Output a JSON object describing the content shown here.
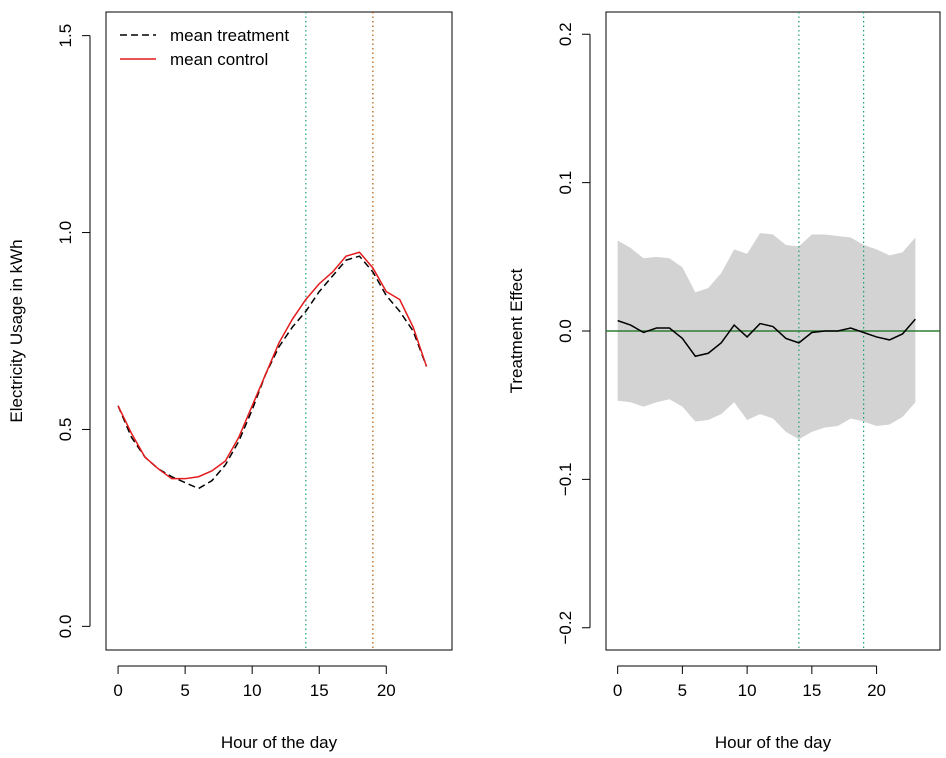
{
  "chart_data": [
    {
      "type": "line",
      "xlabel": "Hour of the day",
      "ylabel": "Electricity Usage in kWh",
      "xlim": [
        -0.9,
        24.9
      ],
      "ylim": [
        -0.06,
        1.56
      ],
      "xticks": [
        "0",
        "5",
        "10",
        "15",
        "20"
      ],
      "yticks": [
        "0.0",
        "0.5",
        "1.0",
        "1.5"
      ],
      "legend_position": "top-left",
      "legend": [
        "mean treatment",
        "mean control"
      ],
      "x": [
        0,
        1,
        2,
        3,
        4,
        5,
        6,
        7,
        8,
        9,
        10,
        11,
        12,
        13,
        14,
        15,
        16,
        17,
        18,
        19,
        20,
        21,
        22,
        23
      ],
      "series": [
        {
          "name": "mean treatment",
          "style": "dashed",
          "color": "#000000",
          "values": [
            0.56,
            0.48,
            0.43,
            0.4,
            0.38,
            0.365,
            0.35,
            0.37,
            0.41,
            0.47,
            0.55,
            0.64,
            0.71,
            0.76,
            0.8,
            0.85,
            0.89,
            0.93,
            0.94,
            0.9,
            0.84,
            0.8,
            0.75,
            0.66
          ]
        },
        {
          "name": "mean control",
          "style": "solid",
          "color": "#e31a1c",
          "values": [
            0.56,
            0.49,
            0.43,
            0.4,
            0.375,
            0.375,
            0.38,
            0.395,
            0.42,
            0.48,
            0.56,
            0.64,
            0.72,
            0.78,
            0.83,
            0.87,
            0.9,
            0.94,
            0.95,
            0.91,
            0.85,
            0.83,
            0.76,
            0.66
          ]
        }
      ],
      "vlines": [
        {
          "x": 14,
          "color": "#1b9e77",
          "style": "dotted"
        },
        {
          "x": 19,
          "color": "#b35806",
          "style": "dotted"
        }
      ]
    },
    {
      "type": "line",
      "xlabel": "Hour of the day",
      "ylabel": "Treatment Effect",
      "xlim": [
        -0.9,
        24.9
      ],
      "ylim": [
        -0.215,
        0.215
      ],
      "xticks": [
        "0",
        "5",
        "10",
        "15",
        "20"
      ],
      "yticks": [
        "−0.2",
        "−0.1",
        "0.0",
        "0.1",
        "0.2"
      ],
      "x": [
        0,
        1,
        2,
        3,
        4,
        5,
        6,
        7,
        8,
        9,
        10,
        11,
        12,
        13,
        14,
        15,
        16,
        17,
        18,
        19,
        20,
        21,
        22,
        23
      ],
      "series": [
        {
          "style": "solid",
          "color": "#000000",
          "values": [
            0.007,
            0.004,
            -0.001,
            0.002,
            0.002,
            -0.005,
            -0.017,
            -0.015,
            -0.008,
            0.004,
            -0.004,
            0.005,
            0.003,
            -0.005,
            -0.008,
            -0.001,
            0.0,
            0.0,
            0.002,
            -0.001,
            -0.004,
            -0.006,
            -0.002,
            0.008
          ]
        }
      ],
      "band": {
        "color": "#d3d3d3",
        "upper": [
          0.061,
          0.056,
          0.049,
          0.05,
          0.049,
          0.043,
          0.026,
          0.029,
          0.039,
          0.055,
          0.052,
          0.066,
          0.065,
          0.058,
          0.057,
          0.065,
          0.065,
          0.064,
          0.063,
          0.058,
          0.055,
          0.051,
          0.053,
          0.063
        ],
        "lower": [
          -0.047,
          -0.048,
          -0.051,
          -0.048,
          -0.046,
          -0.051,
          -0.061,
          -0.06,
          -0.056,
          -0.048,
          -0.06,
          -0.056,
          -0.059,
          -0.068,
          -0.073,
          -0.068,
          -0.065,
          -0.064,
          -0.059,
          -0.061,
          -0.064,
          -0.063,
          -0.058,
          -0.048
        ]
      },
      "hlines": [
        {
          "y": 0,
          "color": "#2e7d32",
          "style": "solid"
        }
      ],
      "vlines": [
        {
          "x": 14,
          "color": "#1b9e77",
          "style": "dotted"
        },
        {
          "x": 19,
          "color": "#1b9e77",
          "style": "dotted"
        }
      ]
    }
  ]
}
